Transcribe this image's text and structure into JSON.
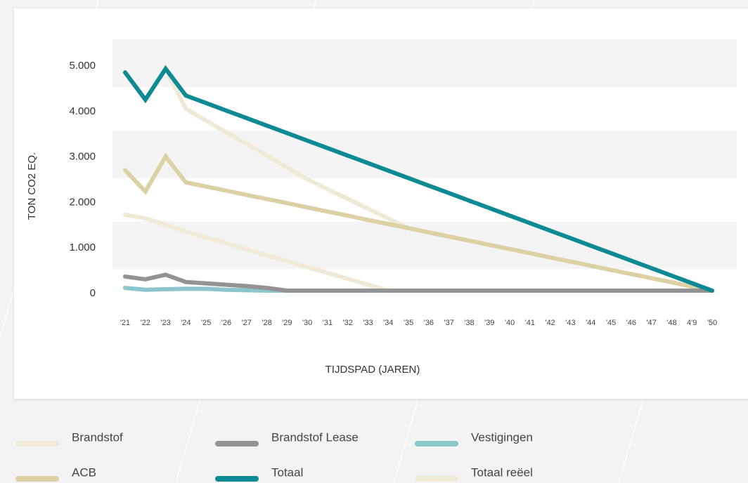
{
  "chart_data": {
    "type": "line",
    "x_label": "TIJDSPAD (JAREN)",
    "y_label": "TON CO2 EQ.",
    "categories": [
      "'21",
      "'22",
      "'23",
      "'24",
      "'25",
      "'26",
      "'27",
      "'28",
      "'29",
      "'30",
      "'31",
      "'32",
      "'33",
      "'34",
      "'35",
      "'36",
      "'37",
      "'38",
      "'39",
      "'40",
      "'41",
      "'42",
      "'43",
      "'44",
      "'45",
      "'46",
      "'47",
      "'48",
      "4'9",
      "'50"
    ],
    "ylim": [
      0,
      5250
    ],
    "yticks": [
      0,
      {
        "value": 1000,
        "label": "1.000"
      },
      {
        "value": 2000,
        "label": "2.000"
      },
      {
        "value": 3000,
        "label": "3.000"
      },
      {
        "value": 4000,
        "label": "4.000"
      },
      {
        "value": 5000,
        "label": "5.000"
      }
    ],
    "grid": true,
    "series": [
      {
        "name": "Totaal reëel",
        "color": "#efe9d6",
        "values": [
          4800,
          4200,
          4880,
          4000,
          3740,
          3480,
          3230,
          2970,
          2710,
          2450,
          2230,
          2020,
          1800,
          1590,
          1370,
          1280,
          1190,
          1100,
          1005,
          915,
          825,
          730,
          640,
          550,
          455,
          365,
          275,
          185,
          90,
          0
        ]
      },
      {
        "name": "Brandstof",
        "color": "#efe9d6",
        "values": [
          1670,
          1590,
          1450,
          1300,
          1170,
          1040,
          910,
          780,
          650,
          520,
          390,
          260,
          130,
          0,
          0,
          0,
          0,
          0,
          0,
          0,
          0,
          0,
          0,
          0,
          0,
          0,
          0,
          0,
          0,
          0
        ]
      },
      {
        "name": "ACB",
        "color": "#ddd0a5",
        "values": [
          2650,
          2180,
          2950,
          2380,
          2290,
          2200,
          2105,
          2015,
          1925,
          1830,
          1740,
          1650,
          1555,
          1465,
          1375,
          1280,
          1190,
          1100,
          1005,
          915,
          825,
          730,
          640,
          550,
          455,
          365,
          275,
          185,
          90,
          0
        ]
      },
      {
        "name": "Vestigingen",
        "color": "#8cc5cc",
        "values": [
          60,
          20,
          30,
          40,
          40,
          20,
          10,
          0,
          0,
          0,
          0,
          0,
          0,
          0,
          0,
          0,
          0,
          0,
          0,
          0,
          0,
          0,
          0,
          0,
          0,
          0,
          0,
          0,
          0,
          0
        ]
      },
      {
        "name": "Brandstof Lease",
        "color": "#939393",
        "values": [
          310,
          250,
          350,
          190,
          160,
          130,
          100,
          60,
          0,
          0,
          0,
          0,
          0,
          0,
          0,
          0,
          0,
          0,
          0,
          0,
          0,
          0,
          0,
          0,
          0,
          0,
          0,
          0,
          0,
          0
        ]
      },
      {
        "name": "Totaal",
        "color": "#0e8a94",
        "values": [
          4800,
          4200,
          4880,
          4290,
          4125,
          3960,
          3795,
          3630,
          3465,
          3300,
          3135,
          2970,
          2805,
          2640,
          2475,
          2310,
          2145,
          1980,
          1815,
          1650,
          1485,
          1320,
          1155,
          990,
          825,
          660,
          495,
          330,
          165,
          0
        ]
      }
    ],
    "legend_order": [
      "Brandstof",
      "Brandstof Lease",
      "Vestigingen",
      "ACB",
      "Totaal",
      "Totaal reëel"
    ]
  }
}
